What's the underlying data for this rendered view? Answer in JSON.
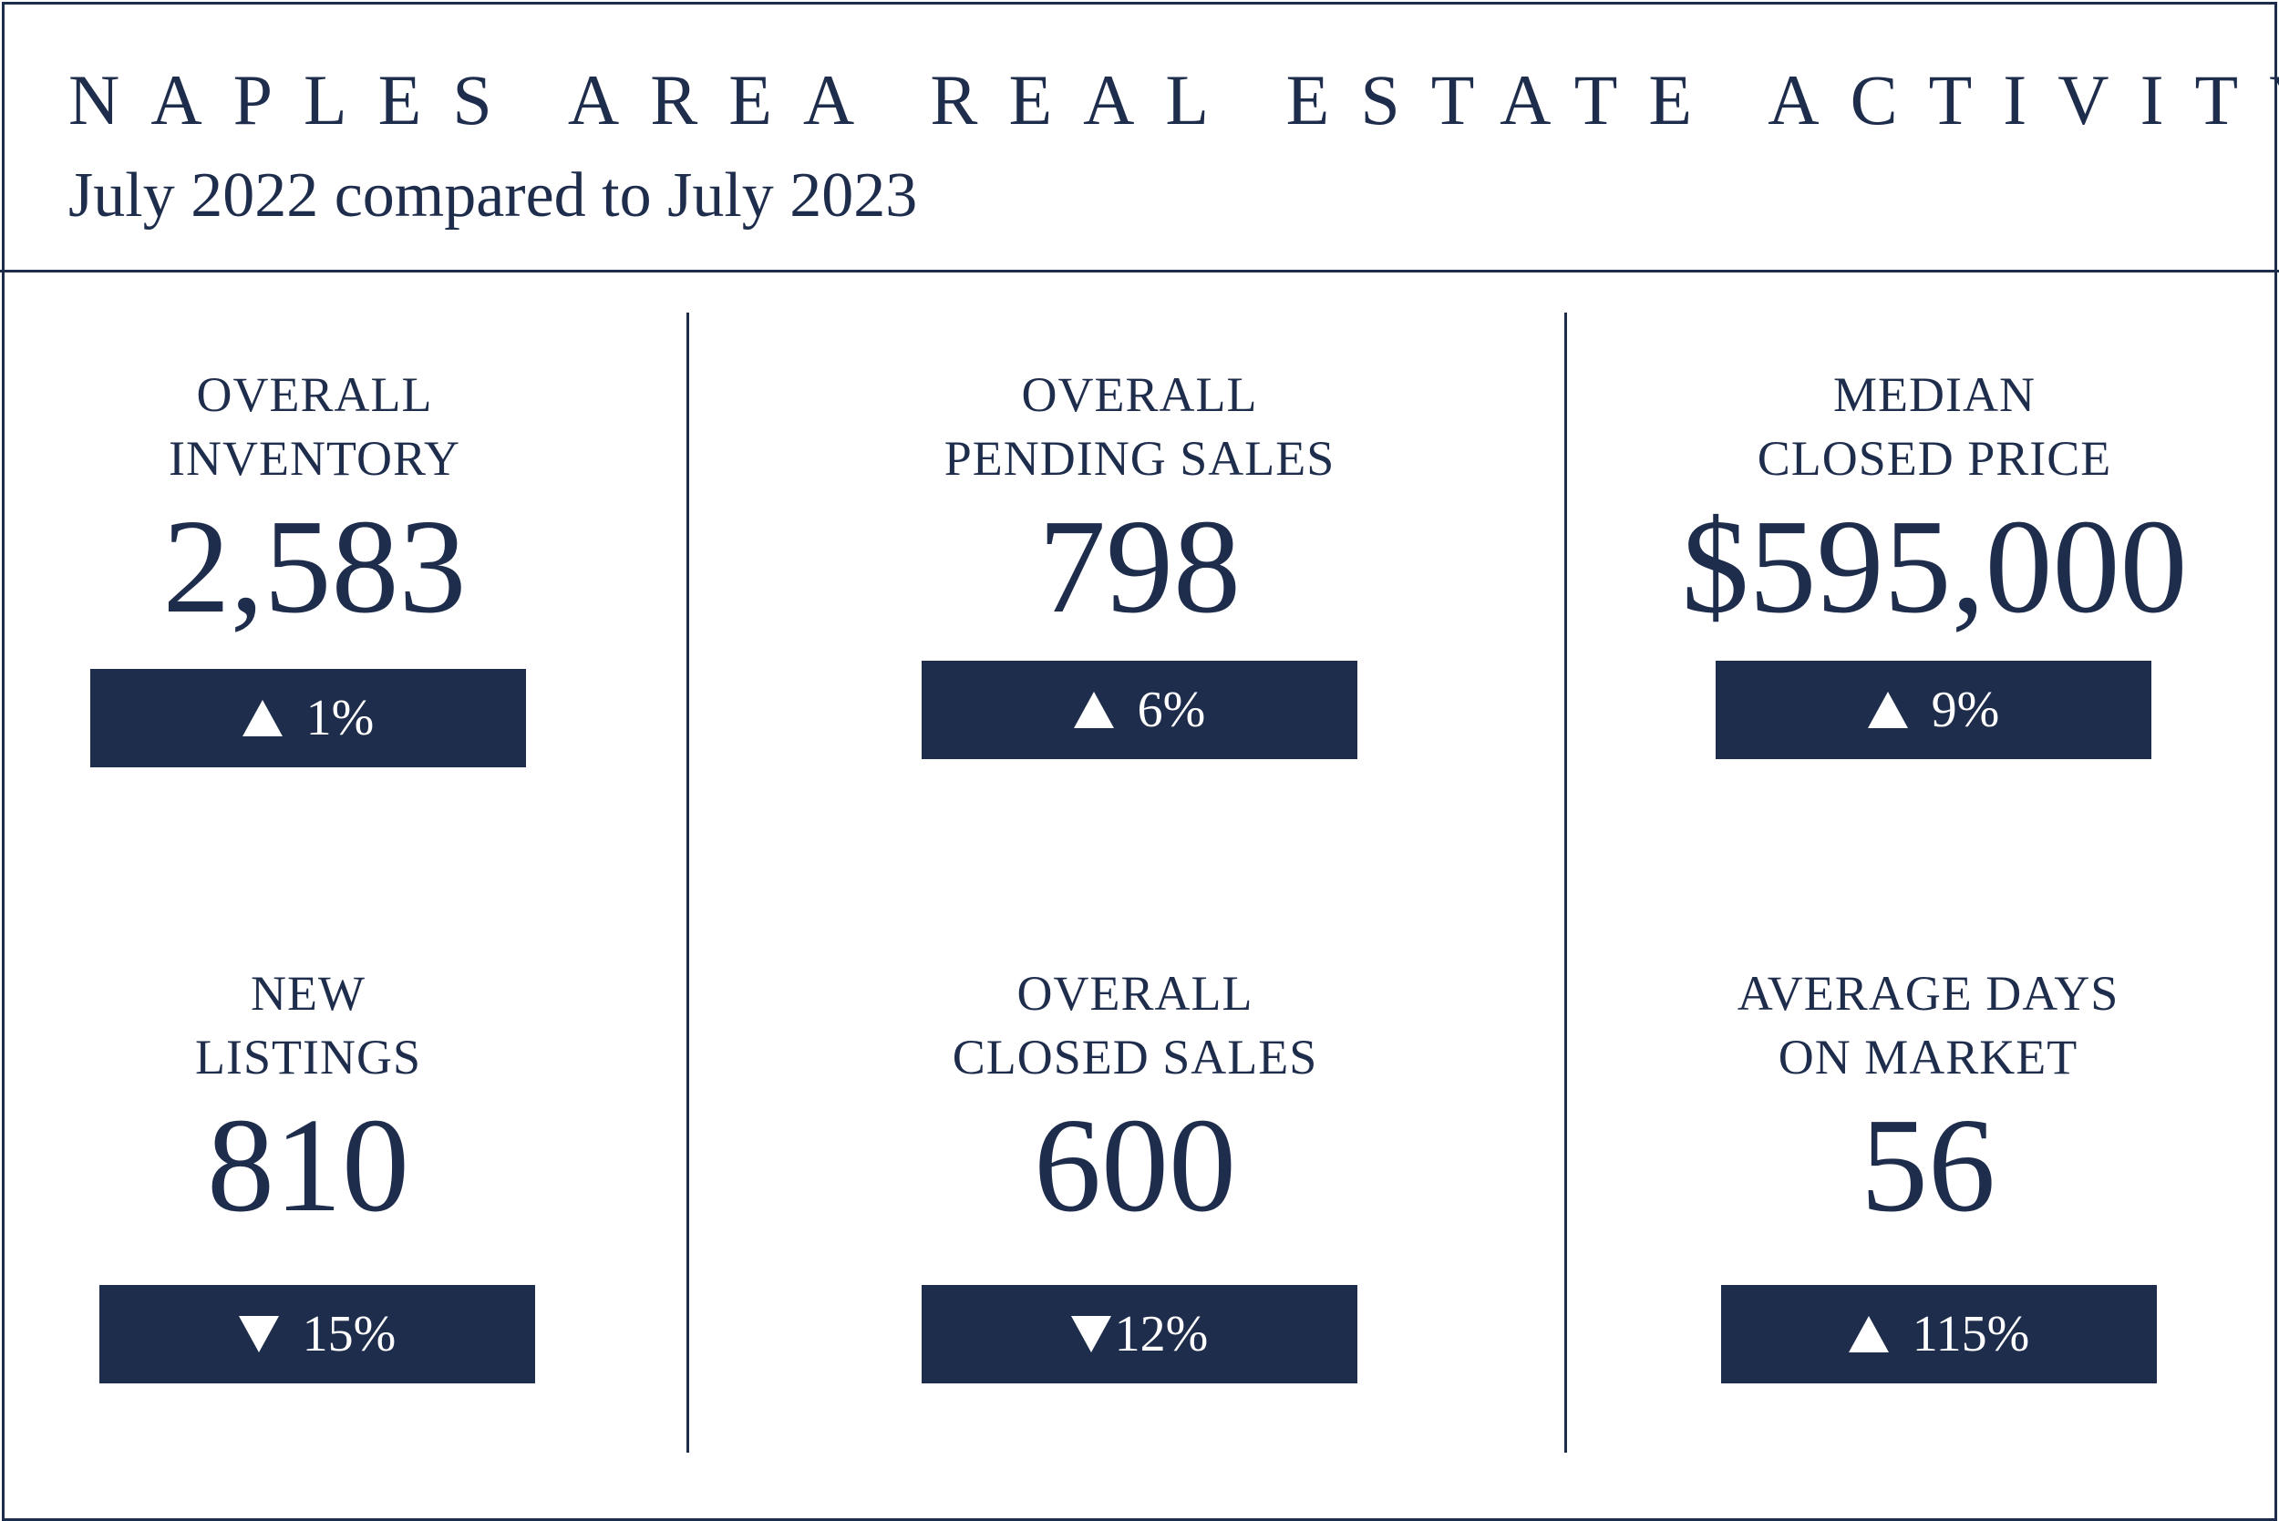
{
  "header": {
    "title": "NAPLES AREA REAL ESTATE ACTIVITY",
    "subtitle": "July 2022 compared to July 2023"
  },
  "metrics": [
    {
      "label_line1": "OVERALL",
      "label_line2": "INVENTORY",
      "value": "2,583",
      "change": "1%",
      "direction": "up",
      "arrow_icon": "triangle-up-icon"
    },
    {
      "label_line1": "OVERALL",
      "label_line2": "PENDING SALES",
      "value": "798",
      "change": "6%",
      "direction": "up",
      "arrow_icon": "triangle-up-icon"
    },
    {
      "label_line1": "MEDIAN",
      "label_line2": "CLOSED PRICE",
      "value": "$595,000",
      "change": "9%",
      "direction": "up",
      "arrow_icon": "triangle-up-icon"
    },
    {
      "label_line1": "NEW",
      "label_line2": "LISTINGS",
      "value": "810",
      "change": "15%",
      "direction": "down",
      "arrow_icon": "triangle-down-icon"
    },
    {
      "label_line1": "OVERALL",
      "label_line2": "CLOSED SALES",
      "value": "600",
      "change": "12%",
      "direction": "down",
      "arrow_icon": "triangle-down-icon"
    },
    {
      "label_line1": "AVERAGE DAYS",
      "label_line2": "ON MARKET",
      "value": "56",
      "change": "115%",
      "direction": "up",
      "arrow_icon": "triangle-up-icon"
    }
  ],
  "colors": {
    "navy": "#1f2d4d",
    "badge_text": "#ffffff",
    "background": "#ffffff"
  }
}
